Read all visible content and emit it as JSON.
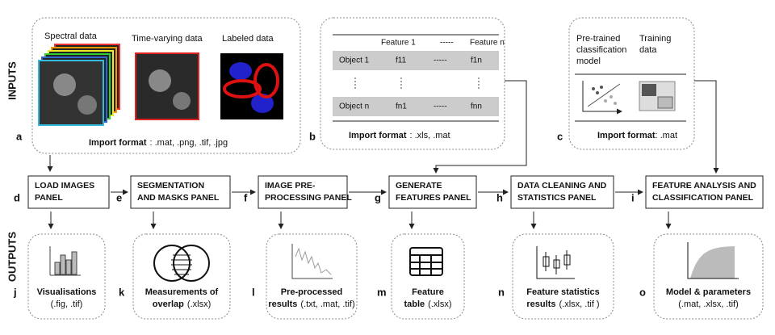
{
  "side_labels": [
    "INPUTS",
    "OUTPUTS"
  ],
  "inputs": [
    {
      "letter": "a",
      "images": [
        "Spectral data",
        "Time-varying data",
        "Labeled data"
      ],
      "import_label": "Import format",
      "import_value": ": .mat, .png, .tif, .jpg"
    },
    {
      "letter": "b",
      "table": {
        "header": [
          "Feature 1",
          "-----",
          "Feature n"
        ],
        "rows": [
          [
            "Object 1",
            "f11",
            "-----",
            "f1n"
          ],
          [
            "Object n",
            "fn1",
            "-----",
            "fnn"
          ]
        ]
      },
      "import_label": "Import format",
      "import_value": ": .xls, .mat"
    },
    {
      "letter": "c",
      "items": [
        [
          "Pre-trained",
          "classification",
          "model"
        ],
        [
          "Training",
          "data"
        ]
      ],
      "import_label": "Import format",
      "import_value": ": .mat"
    }
  ],
  "panels": [
    {
      "letter": "d",
      "lines": [
        "LOAD IMAGES",
        "PANEL"
      ]
    },
    {
      "letter": "e",
      "lines": [
        "SEGMENTATION",
        "AND MASKS PANEL"
      ]
    },
    {
      "letter": "f",
      "lines": [
        "IMAGE PRE-",
        "PROCESSING PANEL"
      ]
    },
    {
      "letter": "g",
      "lines": [
        "GENERATE",
        "FEATURES PANEL"
      ]
    },
    {
      "letter": "h",
      "lines": [
        "DATA CLEANING AND",
        "STATISTICS PANEL"
      ]
    },
    {
      "letter": "i",
      "lines": [
        "FEATURE ANALYSIS AND",
        "CLASSIFICATION PANEL"
      ]
    }
  ],
  "outputs": [
    {
      "letter": "j",
      "lines": [
        {
          "bold": "Visualisations"
        },
        {
          "text": "(.fig, .tif)"
        }
      ]
    },
    {
      "letter": "k",
      "lines": [
        {
          "bold": "Measurements of"
        },
        {
          "bold": "overlap",
          "text": "(.xlsx)"
        }
      ]
    },
    {
      "letter": "l",
      "lines": [
        {
          "bold": "Pre-processed"
        },
        {
          "bold": "results",
          "text": "(.txt, .mat, .tif)"
        }
      ]
    },
    {
      "letter": "m",
      "lines": [
        {
          "bold": "Feature"
        },
        {
          "bold": "table",
          "text": "(.xlsx)"
        }
      ]
    },
    {
      "letter": "n",
      "lines": [
        {
          "bold": "Feature statistics"
        },
        {
          "bold": "results",
          "text": "(.xlsx, .tif )"
        }
      ]
    },
    {
      "letter": "o",
      "lines": [
        {
          "bold": "Model & parameters"
        },
        {
          "text": "(.mat, .xlsx, .tif)"
        }
      ]
    }
  ]
}
